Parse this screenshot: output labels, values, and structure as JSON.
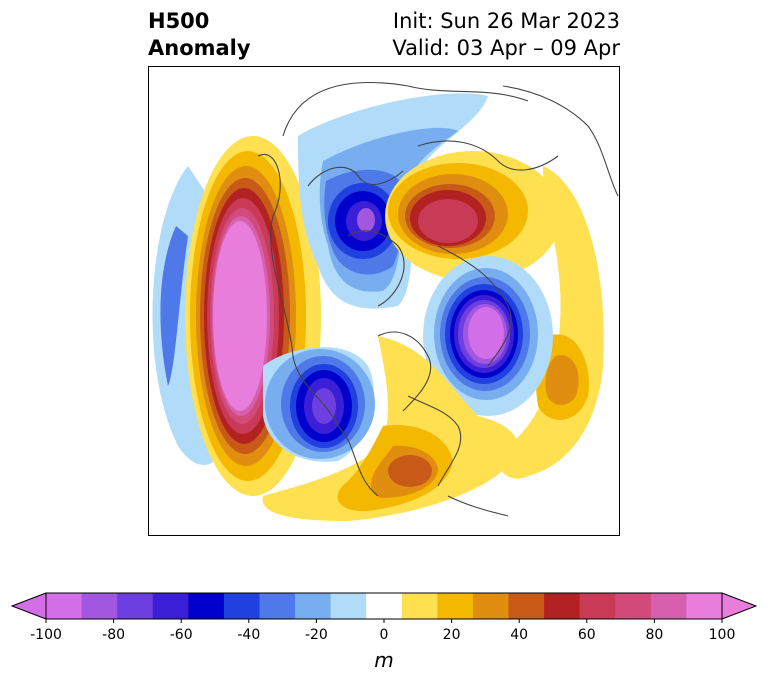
{
  "title": {
    "left_line1": "H500",
    "left_line2": "Anomaly",
    "right_line1": "Init: Sun 26 Mar 2023",
    "right_line2": "Valid: 03 Apr – 09 Apr"
  },
  "colorbar": {
    "units": "m",
    "ticks": [
      "-100",
      "-80",
      "-60",
      "-40",
      "-20",
      "0",
      "20",
      "40",
      "60",
      "80",
      "100"
    ],
    "tick_values": [
      -100,
      -80,
      -60,
      -40,
      -20,
      0,
      20,
      40,
      60,
      80,
      100
    ],
    "colors": [
      "#d36ee9",
      "#a157e0",
      "#6d3ee0",
      "#3a1fd6",
      "#0000cc",
      "#2040e0",
      "#4f78e8",
      "#78aef0",
      "#b0dcfa",
      "#ffffff",
      "#ffe050",
      "#f5b800",
      "#e08e10",
      "#c85a18",
      "#b22222",
      "#c83a55",
      "#d24a7a",
      "#d65fae",
      "#e97ddb"
    ],
    "min_color": "#d36ee9",
    "max_color": "#e97ddb"
  },
  "chart_data": {
    "type": "heatmap",
    "field": "500 hPa geopotential height anomaly",
    "range": [
      -100,
      100
    ],
    "interval": 10
  }
}
